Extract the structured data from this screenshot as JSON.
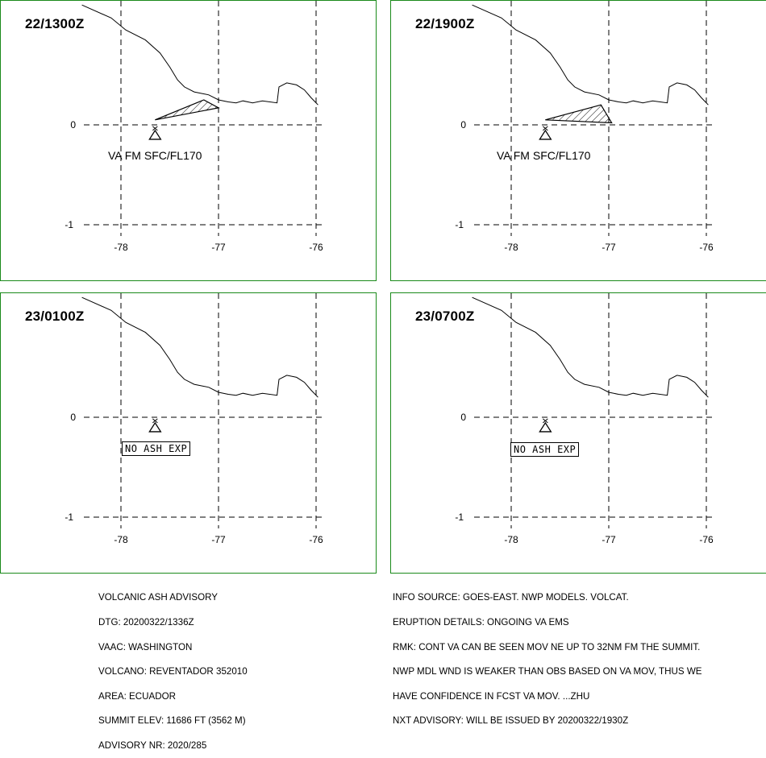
{
  "panels": [
    {
      "time": "22/1300Z",
      "va_label": "VA FM SFC/FL170",
      "no_ash": "",
      "ash_cloud": [
        [
          -77.65,
          0.05
        ],
        [
          -77.15,
          0.25
        ],
        [
          -77.0,
          0.17
        ],
        [
          -77.65,
          0.05
        ]
      ]
    },
    {
      "time": "22/1900Z",
      "va_label": "VA FM SFC/FL170",
      "no_ash": "",
      "ash_cloud": [
        [
          -77.65,
          0.05
        ],
        [
          -77.08,
          0.2
        ],
        [
          -76.97,
          0.02
        ],
        [
          -77.65,
          0.05
        ]
      ]
    },
    {
      "time": "23/0100Z",
      "va_label": "",
      "no_ash": "NO ASH EXP",
      "ash_cloud": []
    },
    {
      "time": "23/0700Z",
      "va_label": "",
      "no_ash": "NO ASH EXP",
      "ash_cloud": []
    }
  ],
  "axes": {
    "x_ticks": [
      "-78",
      "-77",
      "-76"
    ],
    "y_ticks": [
      "0",
      "-1"
    ]
  },
  "volcano": {
    "lon": -77.65,
    "lat": -0.08,
    "icon": "volcano-triangle-icon"
  },
  "coastline": [
    [
      -78.4,
      1.2
    ],
    [
      -78.1,
      1.07
    ],
    [
      -77.95,
      0.95
    ],
    [
      -77.75,
      0.85
    ],
    [
      -77.6,
      0.72
    ],
    [
      -77.5,
      0.58
    ],
    [
      -77.42,
      0.45
    ],
    [
      -77.35,
      0.38
    ],
    [
      -77.25,
      0.33
    ],
    [
      -77.1,
      0.3
    ],
    [
      -77.0,
      0.25
    ],
    [
      -76.9,
      0.23
    ],
    [
      -76.82,
      0.22
    ],
    [
      -76.75,
      0.24
    ],
    [
      -76.65,
      0.22
    ],
    [
      -76.55,
      0.24
    ],
    [
      -76.4,
      0.22
    ],
    [
      -76.38,
      0.38
    ],
    [
      -76.3,
      0.42
    ],
    [
      -76.2,
      0.4
    ],
    [
      -76.12,
      0.35
    ],
    [
      -76.05,
      0.27
    ],
    [
      -75.98,
      0.2
    ]
  ],
  "advisory_left": [
    "VOLCANIC ASH ADVISORY",
    "DTG: 20200322/1336Z",
    "VAAC: WASHINGTON",
    "VOLCANO: REVENTADOR 352010",
    "AREA: ECUADOR",
    "SUMMIT ELEV: 11686 FT (3562 M)",
    "ADVISORY NR: 2020/285"
  ],
  "advisory_right": [
    "INFO SOURCE: GOES-EAST. NWP MODELS. VOLCAT.",
    "ERUPTION DETAILS: ONGOING VA EMS",
    "RMK: CONT VA CAN BE SEEN MOV NE UP TO 32NM FM THE SUMMIT.",
    "NWP MDL WND IS WEAKER THAN OBS BASED ON VA MOV, THUS WE",
    "HAVE CONFIDENCE IN FCST VA MOV. ...ZHU",
    "NXT ADVISORY: WILL BE ISSUED BY 20200322/1930Z"
  ],
  "colors": {
    "panel_border": "#1a8a1a",
    "lines": "#000000"
  }
}
